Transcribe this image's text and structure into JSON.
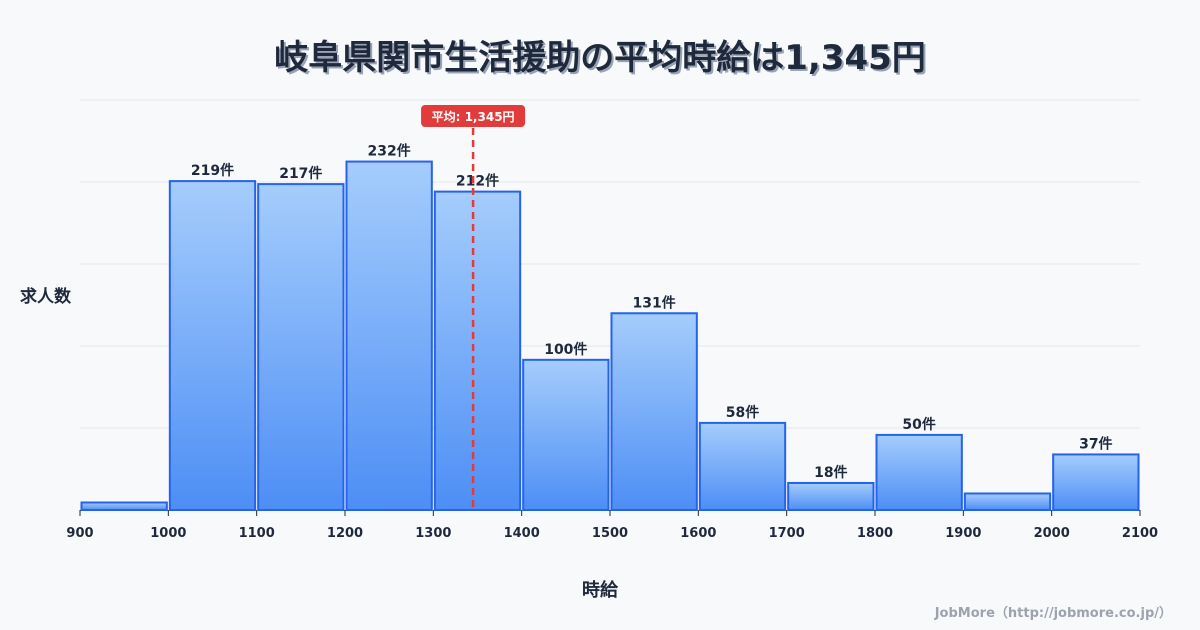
{
  "title": "岐阜県関市生活援助の平均時給は1,345円",
  "credit": "JobMore（http://jobmore.co.jp/）",
  "colors": {
    "bar_stroke": "#2563eb",
    "bar_top": "#a5cdfc",
    "bar_bottom": "#4d8ef5",
    "mean_line": "#e23b3b",
    "grid": "#e3e6ec",
    "text": "#1e293b"
  },
  "mean": {
    "value": 1345,
    "label": "平均: 1,345円"
  },
  "chart_data": {
    "type": "bar",
    "title": "岐阜県関市生活援助の平均時給は1,345円",
    "xlabel": "時給",
    "ylabel": "求人数",
    "bin_edges": [
      900,
      1000,
      1100,
      1200,
      1300,
      1400,
      1500,
      1600,
      1700,
      1800,
      1900,
      2000,
      2100
    ],
    "categories": [
      "900-1000",
      "1000-1100",
      "1100-1200",
      "1200-1300",
      "1300-1400",
      "1400-1500",
      "1500-1600",
      "1600-1700",
      "1700-1800",
      "1800-1900",
      "1900-2000",
      "2000-2100"
    ],
    "values": [
      5,
      219,
      217,
      232,
      212,
      100,
      131,
      58,
      18,
      50,
      11,
      37
    ],
    "labels": [
      "",
      "219件",
      "217件",
      "232件",
      "212件",
      "100件",
      "131件",
      "58件",
      "18件",
      "50件",
      "",
      "37件"
    ],
    "x_ticks": [
      "900",
      "1000",
      "1100",
      "1200",
      "1300",
      "1400",
      "1500",
      "1600",
      "1700",
      "1800",
      "1900",
      "2000",
      "2100"
    ],
    "ylim": [
      0,
      273
    ],
    "grid": true,
    "mean_line": 1345
  }
}
